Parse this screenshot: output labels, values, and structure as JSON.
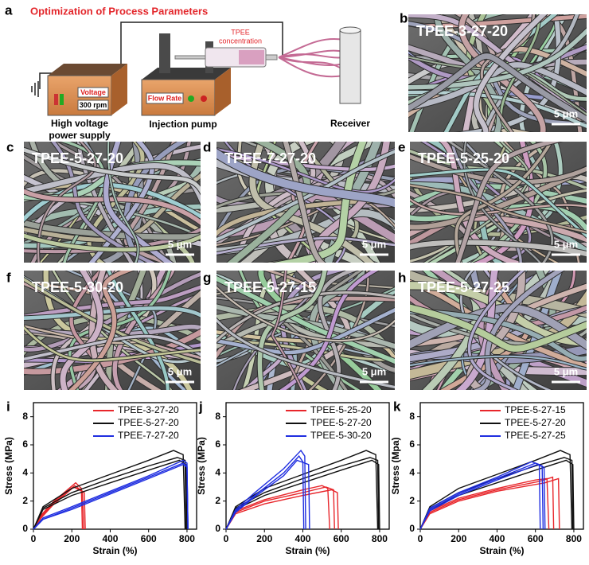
{
  "panel_labels": [
    "a",
    "b",
    "c",
    "d",
    "e",
    "f",
    "g",
    "h"
  ],
  "schematic": {
    "title": "Optimization of Process Parameters",
    "voltage": "Voltage",
    "rpm": "300 rpm",
    "power_supply_lines": [
      "High voltage",
      "power supply"
    ],
    "flow_rate": "Flow Rate",
    "pump": "Injection pump",
    "concentration_lines": [
      "TPEE",
      "concentration"
    ],
    "receiver": "Receiver"
  },
  "micrographs": [
    {
      "label": "TPEE-3-27-20",
      "scale": "5 μm"
    },
    {
      "label": "TPEE-5-27-20",
      "scale": "5 μm"
    },
    {
      "label": "TPEE-7-27-20",
      "scale": "5 μm"
    },
    {
      "label": "TPEE-5-25-20",
      "scale": "5 μm"
    },
    {
      "label": "TPEE-5-30-20",
      "scale": "5 μm"
    },
    {
      "label": "TPEE-5-27-15",
      "scale": "5 μm"
    },
    {
      "label": "TPEE-5-27-25",
      "scale": "5 μm"
    }
  ],
  "chart_data": [
    {
      "type": "line",
      "panel_label": "i",
      "x_label": "Strain (%)",
      "y_label": "Stress (MPa)",
      "xlim": [
        0,
        850
      ],
      "ylim": [
        0,
        9
      ],
      "xticks": [
        0,
        200,
        400,
        600,
        800
      ],
      "yticks": [
        0,
        2,
        4,
        6,
        8
      ],
      "legend": "upper right",
      "series": [
        {
          "name": "TPEE-3-27-20",
          "color": "#e8262b",
          "curves": [
            {
              "x": [
                0,
                40,
                100,
                160,
                220,
                250,
                255
              ],
              "values": [
                0,
                1.0,
                1.9,
                2.6,
                3.3,
                2.9,
                0
              ]
            },
            {
              "x": [
                0,
                40,
                100,
                160,
                215,
                255,
                262
              ],
              "values": [
                0,
                0.9,
                1.8,
                2.5,
                3.1,
                2.7,
                0
              ]
            },
            {
              "x": [
                0,
                40,
                100,
                160,
                210,
                265,
                270
              ],
              "values": [
                0,
                0.8,
                1.7,
                2.4,
                3.0,
                2.6,
                0
              ]
            }
          ]
        },
        {
          "name": "TPEE-5-27-20",
          "color": "#111111",
          "curves": [
            {
              "x": [
                0,
                50,
                200,
                400,
                600,
                730,
                780,
                790
              ],
              "values": [
                0,
                1.6,
                2.9,
                3.9,
                4.9,
                5.6,
                5.3,
                0
              ]
            },
            {
              "x": [
                0,
                50,
                200,
                400,
                600,
                750,
                790,
                795
              ],
              "values": [
                0,
                1.5,
                2.6,
                3.6,
                4.5,
                5.1,
                4.9,
                0
              ]
            },
            {
              "x": [
                0,
                50,
                200,
                400,
                600,
                760,
                795,
                800
              ],
              "values": [
                0,
                1.4,
                2.4,
                3.3,
                4.2,
                4.9,
                4.6,
                0
              ]
            }
          ]
        },
        {
          "name": "TPEE-7-27-20",
          "color": "#1f2ee0",
          "curves": [
            {
              "x": [
                0,
                50,
                200,
                400,
                600,
                780,
                800,
                805
              ],
              "values": [
                0,
                0.8,
                1.6,
                2.7,
                3.8,
                4.9,
                4.7,
                0
              ]
            },
            {
              "x": [
                0,
                50,
                200,
                400,
                600,
                780,
                800,
                805
              ],
              "values": [
                0,
                0.7,
                1.5,
                2.6,
                3.7,
                4.7,
                4.5,
                0
              ]
            },
            {
              "x": [
                0,
                50,
                200,
                400,
                600,
                780,
                800,
                805
              ],
              "values": [
                0,
                0.7,
                1.4,
                2.5,
                3.6,
                4.6,
                4.4,
                0
              ]
            }
          ]
        }
      ]
    },
    {
      "type": "line",
      "panel_label": "j",
      "x_label": "Strain (%)",
      "y_label": "Stress (MPa)",
      "xlim": [
        0,
        850
      ],
      "ylim": [
        0,
        9
      ],
      "xticks": [
        0,
        200,
        400,
        600,
        800
      ],
      "yticks": [
        0,
        2,
        4,
        6,
        8
      ],
      "legend": "upper right",
      "series": [
        {
          "name": "TPEE-5-25-20",
          "color": "#e8262b",
          "curves": [
            {
              "x": [
                0,
                50,
                200,
                400,
                500,
                530,
                540
              ],
              "values": [
                0,
                1.3,
                2.1,
                2.8,
                3.1,
                2.9,
                0
              ]
            },
            {
              "x": [
                0,
                50,
                200,
                400,
                520,
                560,
                565
              ],
              "values": [
                0,
                1.2,
                2.0,
                2.6,
                3.0,
                2.8,
                0
              ]
            },
            {
              "x": [
                0,
                50,
                200,
                400,
                550,
                580,
                585
              ],
              "values": [
                0,
                1.1,
                1.8,
                2.4,
                2.8,
                2.6,
                0
              ]
            }
          ]
        },
        {
          "name": "TPEE-5-27-20",
          "color": "#111111",
          "curves": [
            {
              "x": [
                0,
                50,
                200,
                400,
                600,
                730,
                780,
                790
              ],
              "values": [
                0,
                1.6,
                2.9,
                3.9,
                4.9,
                5.6,
                5.3,
                0
              ]
            },
            {
              "x": [
                0,
                50,
                200,
                400,
                600,
                750,
                790,
                795
              ],
              "values": [
                0,
                1.5,
                2.6,
                3.6,
                4.5,
                5.1,
                4.9,
                0
              ]
            },
            {
              "x": [
                0,
                50,
                200,
                400,
                600,
                760,
                795,
                800
              ],
              "values": [
                0,
                1.4,
                2.4,
                3.3,
                4.2,
                4.9,
                4.6,
                0
              ]
            }
          ]
        },
        {
          "name": "TPEE-5-30-20",
          "color": "#1f2ee0",
          "curves": [
            {
              "x": [
                0,
                50,
                150,
                300,
                390,
                410,
                415
              ],
              "values": [
                0,
                1.4,
                2.6,
                4.3,
                5.6,
                5.2,
                0
              ]
            },
            {
              "x": [
                0,
                50,
                150,
                300,
                380,
                400,
                405
              ],
              "values": [
                0,
                1.3,
                2.4,
                4.0,
                5.2,
                4.8,
                0
              ]
            },
            {
              "x": [
                0,
                50,
                150,
                300,
                370,
                430,
                435
              ],
              "values": [
                0,
                1.2,
                2.3,
                3.8,
                4.9,
                4.6,
                0
              ]
            }
          ]
        }
      ]
    },
    {
      "type": "line",
      "panel_label": "k",
      "x_label": "Strain (%)",
      "y_label": "Stress (Mpa)",
      "xlim": [
        0,
        850
      ],
      "ylim": [
        0,
        9
      ],
      "xticks": [
        0,
        200,
        400,
        600,
        800
      ],
      "yticks": [
        0,
        2,
        4,
        6,
        8
      ],
      "legend": "upper right",
      "series": [
        {
          "name": "TPEE-5-27-15",
          "color": "#e8262b",
          "curves": [
            {
              "x": [
                0,
                50,
                200,
                400,
                600,
                660,
                670
              ],
              "values": [
                0,
                1.3,
                2.2,
                2.9,
                3.5,
                3.6,
                0
              ]
            },
            {
              "x": [
                0,
                50,
                200,
                400,
                620,
                690,
                695
              ],
              "values": [
                0,
                1.2,
                2.1,
                2.8,
                3.4,
                3.7,
                0
              ]
            },
            {
              "x": [
                0,
                50,
                200,
                400,
                650,
                720,
                725
              ],
              "values": [
                0,
                1.1,
                2.0,
                2.7,
                3.3,
                3.6,
                0
              ]
            }
          ]
        },
        {
          "name": "TPEE-5-27-20",
          "color": "#111111",
          "curves": [
            {
              "x": [
                0,
                50,
                200,
                400,
                600,
                730,
                780,
                790
              ],
              "values": [
                0,
                1.6,
                2.9,
                3.9,
                4.9,
                5.6,
                5.3,
                0
              ]
            },
            {
              "x": [
                0,
                50,
                200,
                400,
                600,
                750,
                790,
                795
              ],
              "values": [
                0,
                1.5,
                2.6,
                3.6,
                4.5,
                5.1,
                4.9,
                0
              ]
            },
            {
              "x": [
                0,
                50,
                200,
                400,
                600,
                760,
                795,
                800
              ],
              "values": [
                0,
                1.4,
                2.4,
                3.3,
                4.2,
                4.9,
                4.6,
                0
              ]
            }
          ]
        },
        {
          "name": "TPEE-5-27-25",
          "color": "#1f2ee0",
          "curves": [
            {
              "x": [
                0,
                50,
                200,
                400,
                580,
                620,
                625
              ],
              "values": [
                0,
                1.5,
                2.6,
                3.7,
                4.8,
                4.6,
                0
              ]
            },
            {
              "x": [
                0,
                50,
                200,
                400,
                600,
                635,
                640
              ],
              "values": [
                0,
                1.4,
                2.5,
                3.6,
                4.7,
                4.5,
                0
              ]
            },
            {
              "x": [
                0,
                50,
                200,
                400,
                610,
                645,
                650
              ],
              "values": [
                0,
                1.3,
                2.4,
                3.5,
                4.6,
                4.4,
                0
              ]
            }
          ]
        }
      ]
    }
  ]
}
